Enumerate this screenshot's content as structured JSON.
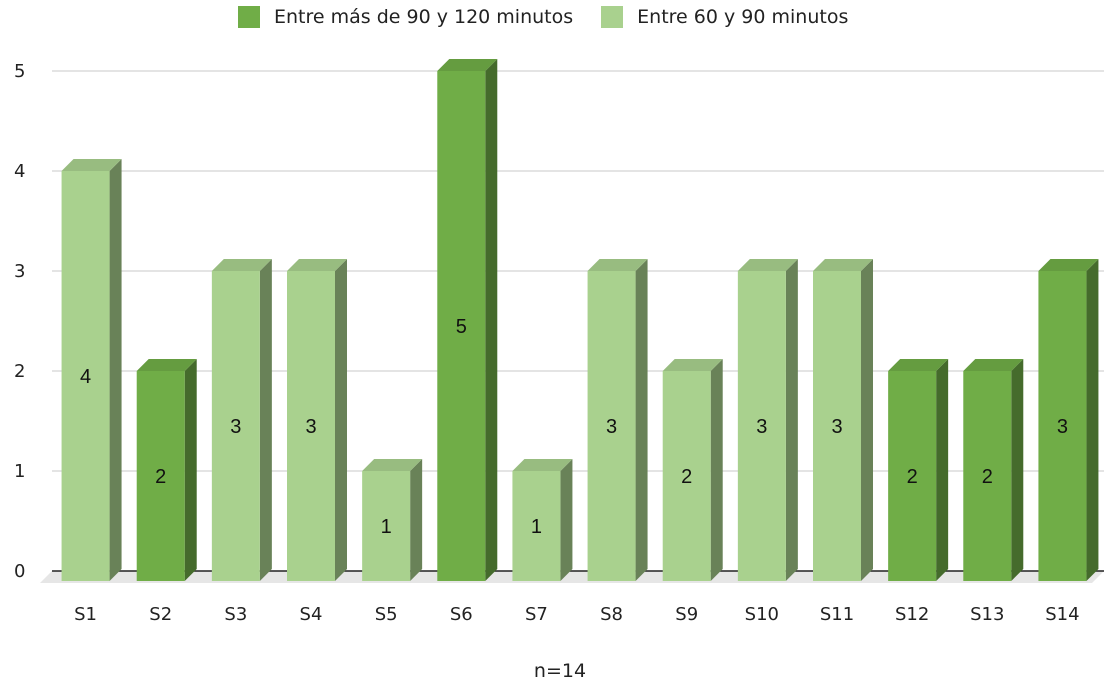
{
  "chart_data": {
    "type": "bar",
    "categories": [
      "S1",
      "S2",
      "S3",
      "S4",
      "S5",
      "S6",
      "S7",
      "S8",
      "S9",
      "S10",
      "S11",
      "S12",
      "S13",
      "S14"
    ],
    "values": [
      4,
      2,
      3,
      3,
      1,
      5,
      1,
      3,
      2,
      3,
      3,
      2,
      2,
      3
    ],
    "series_index": [
      1,
      0,
      1,
      1,
      1,
      0,
      1,
      1,
      1,
      1,
      1,
      0,
      0,
      0
    ],
    "series": [
      {
        "name": "Entre más de 90 y 120 minutos",
        "color": "#70ad47"
      },
      {
        "name": "Entre 60 y 90 minutos",
        "color": "#a9d18e"
      }
    ],
    "ylim": [
      0,
      5
    ],
    "yticks": [
      0,
      1,
      2,
      3,
      4,
      5
    ],
    "grid": true,
    "legend_position": "top",
    "note": "n=14",
    "style": "3d-column"
  }
}
